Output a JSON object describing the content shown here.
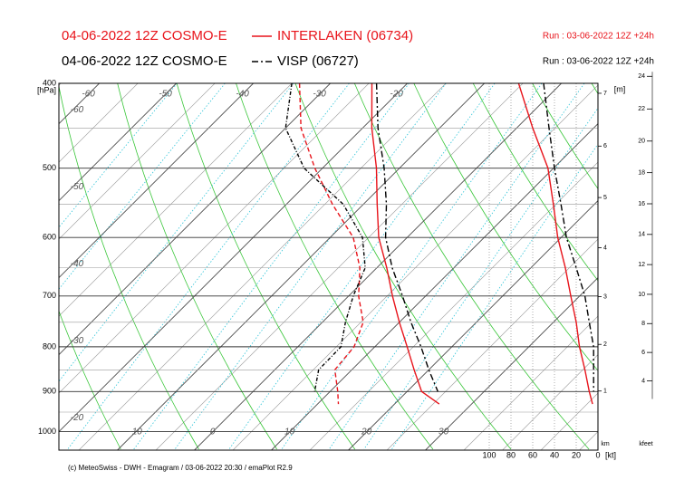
{
  "chart_data": {
    "type": "skewt",
    "series": [
      {
        "name": "INTERLAKEN (06734)",
        "model": "04-06-2022 12Z COSMO-E",
        "run": "Run : 03-06-2022 12Z +24h",
        "color": "#e8141b",
        "dash": "solid",
        "temperature": [
          -24.6,
          -18.8,
          -13,
          -8.2,
          -3.7,
          1.3,
          5.7,
          10,
          14.2,
          18.1,
          21.9,
          25.8
        ],
        "dewpoint": [
          -34,
          -28,
          -21,
          -14,
          -7,
          -2.2,
          1.3,
          5.3,
          7.3,
          7.8,
          11,
          12.7
        ],
        "wind_speed": [
          73,
          60,
          46,
          41,
          37,
          30,
          25,
          20,
          17,
          12,
          8,
          5
        ]
      },
      {
        "name": "VISP (06727)",
        "model": "04-06-2022 12Z COSMO-E",
        "run": "Run : 03-06-2022 12Z +24h",
        "color": "#000000",
        "dash": "dashdot",
        "temperature": [
          -24,
          -18,
          -12,
          -7,
          -2.8,
          2,
          7,
          11.5,
          16,
          20,
          24,
          null
        ],
        "dewpoint": [
          -35,
          -30,
          -22.4,
          -12.6,
          -5.8,
          -1.5,
          0.6,
          3,
          5.6,
          5.7,
          8,
          null
        ],
        "wind_speed": [
          50,
          45,
          40,
          34,
          29,
          20,
          12,
          8,
          4,
          4,
          4,
          null
        ]
      }
    ],
    "pressure": [
      400,
      450,
      500,
      550,
      600,
      650,
      700,
      750,
      800,
      850,
      900,
      930
    ],
    "ylabel": "[hPa]",
    "ylim": [
      400,
      1050
    ],
    "yticks": [
      400,
      500,
      600,
      700,
      800,
      900,
      1000
    ],
    "minor_yticks": [
      450,
      550,
      650,
      750,
      850,
      950
    ],
    "xlim": [
      -17.6,
      52.4
    ],
    "xticks": [
      -60,
      -50,
      -40,
      -30,
      -20,
      -10,
      0,
      10,
      20,
      30
    ],
    "wind_lim": [
      100,
      0
    ],
    "wind_ticks": [
      100,
      80,
      60,
      40,
      20,
      0
    ],
    "wind_unit": "[kt]",
    "height_label": "[m]",
    "height_unit": "km",
    "heights": [
      1,
      2,
      3,
      4,
      5,
      6,
      7
    ],
    "feet_unit": "kfeet",
    "feet_ticks": [
      4,
      6,
      8,
      10,
      12,
      14,
      16,
      18,
      20,
      22,
      24
    ],
    "footer": "(c) MeteoSwiss - DWH - Emagram / 03-06-2022  20:30 / emaPlot R2.9"
  }
}
